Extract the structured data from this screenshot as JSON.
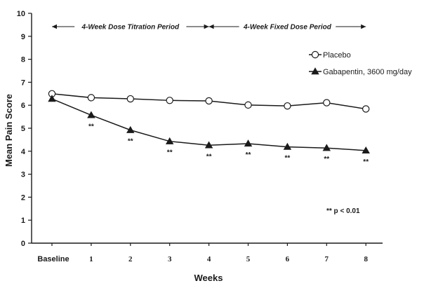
{
  "chart_data": {
    "type": "line",
    "title": "",
    "xlabel": "Weeks",
    "ylabel": "Mean Pain Score",
    "categories": [
      "Baseline",
      "1",
      "2",
      "3",
      "4",
      "5",
      "6",
      "7",
      "8"
    ],
    "ylim": [
      0,
      10
    ],
    "yticks": [
      "0",
      "1",
      "2",
      "3",
      "4",
      "5",
      "6",
      "7",
      "8",
      "9",
      "10"
    ],
    "grid": false,
    "legend_position": "top-right",
    "series": [
      {
        "name": "Placebo",
        "marker": "open-circle",
        "values": [
          6.5,
          6.33,
          6.28,
          6.21,
          6.19,
          6.01,
          5.97,
          6.11,
          5.84
        ]
      },
      {
        "name": "Gabapentin, 3600 mg/day",
        "marker": "filled-triangle",
        "values": [
          6.28,
          5.57,
          4.92,
          4.43,
          4.26,
          4.33,
          4.19,
          4.14,
          4.03
        ]
      }
    ],
    "significance_marks": [
      "",
      "**",
      "**",
      "**",
      "**",
      "**",
      "**",
      "**",
      "**"
    ],
    "significance_note": "** p < 0.01",
    "periods": [
      {
        "label": "4-Week Dose Titration Period",
        "from": "Baseline",
        "to": "4"
      },
      {
        "label": "4-Week Fixed Dose Period",
        "from": "4",
        "to": "8"
      }
    ]
  },
  "colors": {
    "ink": "#1a1a1a",
    "background": "#ffffff"
  }
}
